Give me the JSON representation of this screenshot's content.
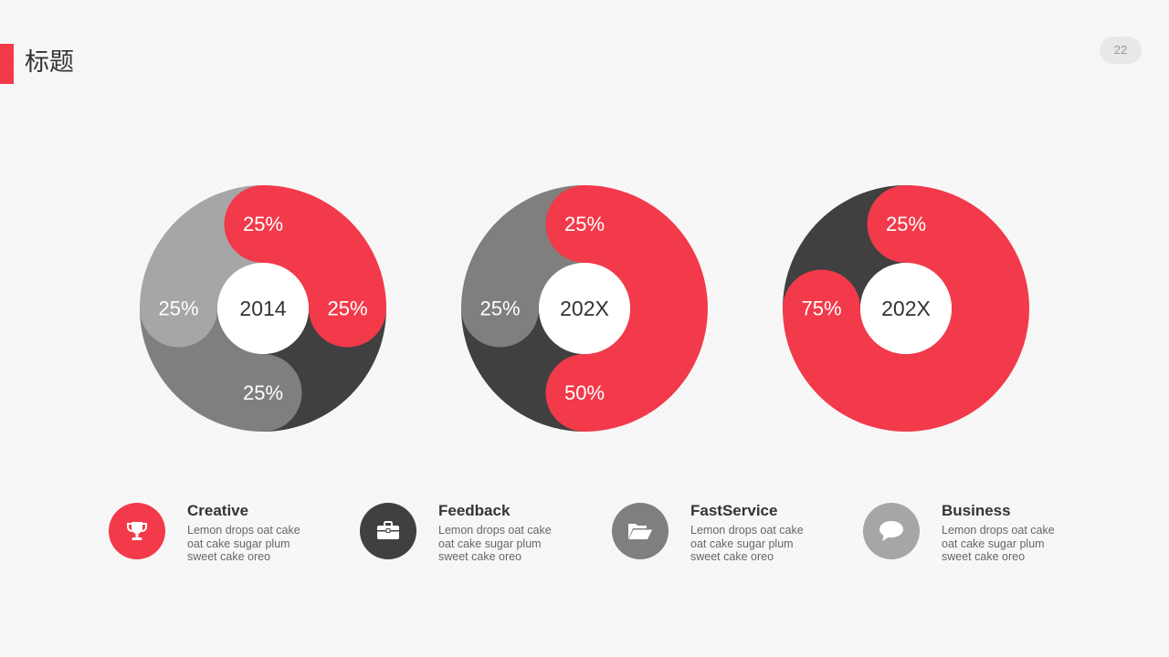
{
  "header": {
    "title": "标题",
    "page_number": "22"
  },
  "colors": {
    "red": "#f23a4a",
    "dark": "#404040",
    "mid": "#7f7f7f",
    "light": "#a6a6a6",
    "white": "#ffffff"
  },
  "chart_data": [
    {
      "type": "pie",
      "center_label": "2014",
      "slices": [
        {
          "label": "25%",
          "value": 25,
          "color": "#f23a4a"
        },
        {
          "label": "25%",
          "value": 25,
          "color": "#404040"
        },
        {
          "label": "25%",
          "value": 25,
          "color": "#7f7f7f"
        },
        {
          "label": "25%",
          "value": 25,
          "color": "#a6a6a6"
        }
      ]
    },
    {
      "type": "pie",
      "center_label": "202X",
      "slices": [
        {
          "label": "50%",
          "value": 50,
          "color": "#f23a4a"
        },
        {
          "label": "25%",
          "value": 25,
          "color": "#404040"
        },
        {
          "label": "25%",
          "value": 25,
          "color": "#7f7f7f"
        }
      ]
    },
    {
      "type": "pie",
      "center_label": "202X",
      "slices": [
        {
          "label": "75%",
          "value": 75,
          "color": "#f23a4a"
        },
        {
          "label": "25%",
          "value": 25,
          "color": "#404040"
        }
      ]
    }
  ],
  "features": [
    {
      "title": "Creative",
      "desc": "Lemon drops oat cake oat cake sugar plum sweet cake oreo",
      "icon": "trophy-icon",
      "color": "#f23a4a"
    },
    {
      "title": "Feedback",
      "desc": "Lemon drops oat cake oat cake sugar plum sweet cake oreo",
      "icon": "briefcase-icon",
      "color": "#404040"
    },
    {
      "title": "FastService",
      "desc": "Lemon drops oat cake oat cake sugar plum sweet cake oreo",
      "icon": "folder-open-icon",
      "color": "#7f7f7f"
    },
    {
      "title": "Business",
      "desc": "Lemon drops oat cake oat cake sugar plum sweet cake oreo",
      "icon": "chat-bubble-icon",
      "color": "#a6a6a6"
    }
  ]
}
